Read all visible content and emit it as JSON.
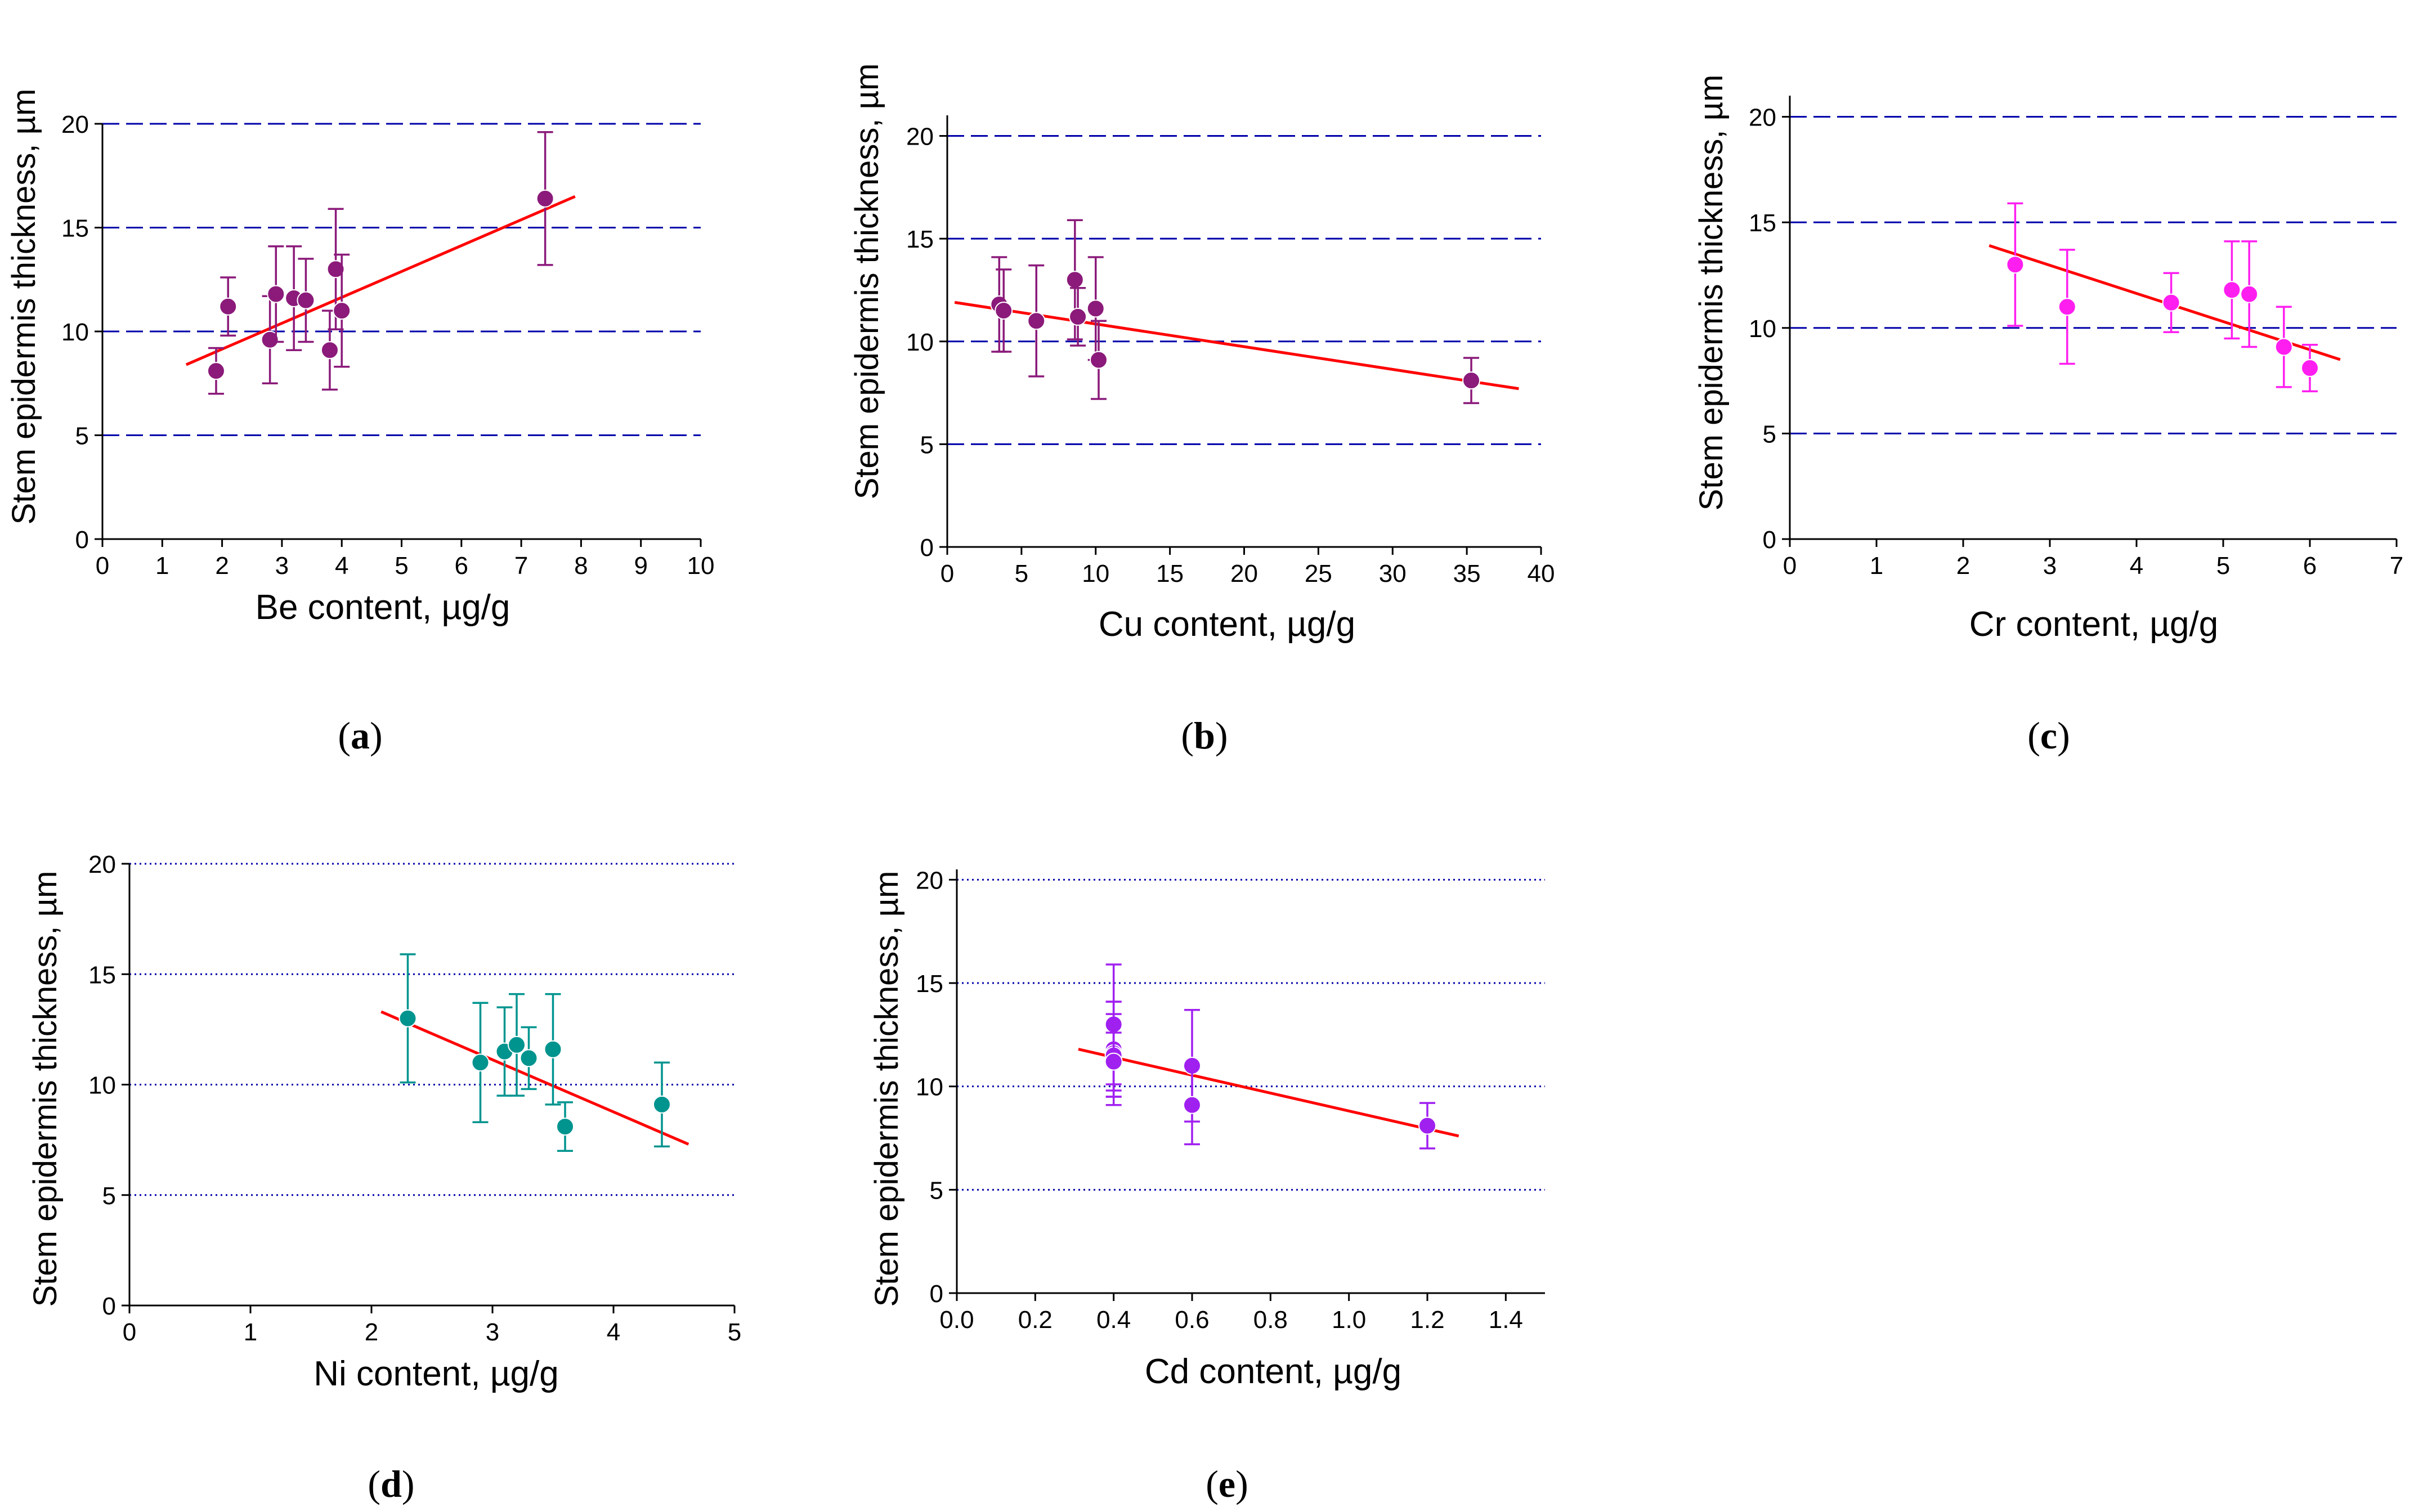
{
  "figure": {
    "panels": [
      "a",
      "b",
      "c",
      "d",
      "e"
    ]
  },
  "colors": {
    "axis": "#000000",
    "grid": "#0000aa",
    "fit_line": "#ff0000",
    "be_points": "#8b1a7a",
    "cu_points": "#8b1a7a",
    "cr_points": "#ff1ef0",
    "ni_points": "#00948f",
    "cd_points": "#a020f0"
  },
  "chart_data": [
    {
      "id": "a",
      "type": "scatter",
      "panel_label": "a",
      "xlabel": "Be content, µg/g",
      "ylabel": "Stem epidermis thickness, µm",
      "xlim": [
        0,
        10
      ],
      "ylim": [
        0,
        20
      ],
      "x_ticks": [
        0,
        1,
        2,
        3,
        4,
        5,
        6,
        7,
        8,
        9,
        10
      ],
      "x_tick_labels": [
        "0",
        "1",
        "2",
        "3",
        "4",
        "5",
        "6",
        "7",
        "8",
        "9",
        "10"
      ],
      "y_ticks": [
        0,
        5,
        10,
        15,
        20
      ],
      "y_tick_labels": [
        "0",
        "5",
        "10",
        "15",
        "20"
      ],
      "grid": "horizontal",
      "grid_style": "dashed",
      "marker_color": "#8b1a7a",
      "points": [
        {
          "x": 1.9,
          "y": 8.1,
          "err": 1.1
        },
        {
          "x": 2.1,
          "y": 11.2,
          "err": 1.4
        },
        {
          "x": 2.8,
          "y": 9.6,
          "err": 2.1
        },
        {
          "x": 2.9,
          "y": 11.8,
          "err": 2.3
        },
        {
          "x": 3.2,
          "y": 11.6,
          "err": 2.5
        },
        {
          "x": 3.4,
          "y": 11.5,
          "err": 2.0
        },
        {
          "x": 3.8,
          "y": 9.1,
          "err": 1.9
        },
        {
          "x": 3.9,
          "y": 13.0,
          "err": 2.9
        },
        {
          "x": 4.0,
          "y": 11.0,
          "err": 2.7
        },
        {
          "x": 7.4,
          "y": 16.4,
          "err": 3.2
        }
      ],
      "fit": {
        "x": [
          1.4,
          7.9
        ],
        "y": [
          8.4,
          16.5
        ]
      }
    },
    {
      "id": "b",
      "type": "scatter",
      "panel_label": "b",
      "xlabel": "Cu content, µg/g",
      "ylabel": "Stem epidermis thickness, µm",
      "xlim": [
        0,
        40
      ],
      "ylim": [
        0,
        21
      ],
      "x_ticks": [
        0,
        5,
        10,
        15,
        20,
        25,
        30,
        35,
        40
      ],
      "x_tick_labels": [
        "0",
        "5",
        "10",
        "15",
        "20",
        "25",
        "30",
        "35",
        "40"
      ],
      "y_ticks": [
        0,
        5,
        10,
        15,
        20
      ],
      "y_tick_labels": [
        "0",
        "5",
        "10",
        "15",
        "20"
      ],
      "grid": "horizontal",
      "grid_style": "dashed",
      "marker_color": "#8b1a7a",
      "points": [
        {
          "x": 3.5,
          "y": 11.8,
          "err": 2.3
        },
        {
          "x": 3.8,
          "y": 11.5,
          "err": 2.0
        },
        {
          "x": 6.0,
          "y": 11.0,
          "err": 2.7
        },
        {
          "x": 8.6,
          "y": 13.0,
          "err": 2.9
        },
        {
          "x": 8.8,
          "y": 11.2,
          "err": 1.4
        },
        {
          "x": 10.0,
          "y": 11.6,
          "err": 2.5
        },
        {
          "x": 10.2,
          "y": 9.1,
          "err": 1.9
        },
        {
          "x": 35.3,
          "y": 8.1,
          "err": 1.1
        }
      ],
      "fit": {
        "x": [
          0.5,
          38.5
        ],
        "y": [
          11.9,
          7.7
        ]
      }
    },
    {
      "id": "c",
      "type": "scatter",
      "panel_label": "c",
      "xlabel": "Cr content, µg/g",
      "ylabel": "Stem epidermis thickness, µm",
      "xlim": [
        0,
        7
      ],
      "ylim": [
        0,
        21
      ],
      "x_ticks": [
        0,
        1,
        2,
        3,
        4,
        5,
        6,
        7
      ],
      "x_tick_labels": [
        "0",
        "1",
        "2",
        "3",
        "4",
        "5",
        "6",
        "7"
      ],
      "y_ticks": [
        0,
        5,
        10,
        15,
        20
      ],
      "y_tick_labels": [
        "0",
        "5",
        "10",
        "15",
        "20"
      ],
      "grid": "horizontal",
      "grid_style": "dashed",
      "marker_color": "#ff1ef0",
      "points": [
        {
          "x": 2.6,
          "y": 13.0,
          "err": 2.9
        },
        {
          "x": 3.2,
          "y": 11.0,
          "err": 2.7
        },
        {
          "x": 4.4,
          "y": 11.2,
          "err": 1.4
        },
        {
          "x": 5.1,
          "y": 11.8,
          "err": 2.3
        },
        {
          "x": 5.3,
          "y": 11.6,
          "err": 2.5
        },
        {
          "x": 5.7,
          "y": 9.1,
          "err": 1.9
        },
        {
          "x": 6.0,
          "y": 8.1,
          "err": 1.1
        }
      ],
      "fit": {
        "x": [
          2.3,
          6.35
        ],
        "y": [
          13.9,
          8.5
        ]
      }
    },
    {
      "id": "d",
      "type": "scatter",
      "panel_label": "d",
      "xlabel": "Ni content, µg/g",
      "ylabel": "Stem epidermis thickness, µm",
      "xlim": [
        0,
        5
      ],
      "ylim": [
        0,
        20
      ],
      "x_ticks": [
        0,
        1,
        2,
        3,
        4,
        5
      ],
      "x_tick_labels": [
        "0",
        "1",
        "2",
        "3",
        "4",
        "5"
      ],
      "y_ticks": [
        0,
        5,
        10,
        15,
        20
      ],
      "y_tick_labels": [
        "0",
        "5",
        "10",
        "15",
        "20"
      ],
      "grid": "horizontal",
      "grid_style": "dotted",
      "marker_color": "#00948f",
      "points": [
        {
          "x": 2.3,
          "y": 13.0,
          "err": 2.9
        },
        {
          "x": 2.9,
          "y": 11.0,
          "err": 2.7
        },
        {
          "x": 3.1,
          "y": 11.5,
          "err": 2.0
        },
        {
          "x": 3.2,
          "y": 11.8,
          "err": 2.3
        },
        {
          "x": 3.3,
          "y": 11.2,
          "err": 1.4
        },
        {
          "x": 3.5,
          "y": 11.6,
          "err": 2.5
        },
        {
          "x": 3.6,
          "y": 8.1,
          "err": 1.1
        },
        {
          "x": 4.4,
          "y": 9.1,
          "err": 1.9
        }
      ],
      "fit": {
        "x": [
          2.08,
          4.62
        ],
        "y": [
          13.3,
          7.3
        ]
      }
    },
    {
      "id": "e",
      "type": "scatter",
      "panel_label": "e",
      "xlabel": "Cd content, µg/g",
      "ylabel": "Stem epidermis thickness, µm",
      "xlim": [
        0,
        1.5
      ],
      "ylim": [
        0,
        20.5
      ],
      "x_ticks": [
        0,
        0.2,
        0.4,
        0.6,
        0.8,
        1.0,
        1.2,
        1.4
      ],
      "x_tick_labels": [
        "0.0",
        "0.2",
        "0.4",
        "0.6",
        "0.8",
        "1.0",
        "1.2",
        "1.4"
      ],
      "y_ticks": [
        0,
        5,
        10,
        15,
        20
      ],
      "y_tick_labels": [
        "0",
        "5",
        "10",
        "15",
        "20"
      ],
      "grid": "horizontal",
      "grid_style": "dotted",
      "marker_color": "#a020f0",
      "points": [
        {
          "x": 0.4,
          "y": 13.0,
          "err": 2.9
        },
        {
          "x": 0.4,
          "y": 11.8,
          "err": 2.3
        },
        {
          "x": 0.4,
          "y": 11.6,
          "err": 2.5
        },
        {
          "x": 0.4,
          "y": 11.5,
          "err": 2.0
        },
        {
          "x": 0.4,
          "y": 11.2,
          "err": 1.4
        },
        {
          "x": 0.6,
          "y": 11.0,
          "err": 2.7
        },
        {
          "x": 0.6,
          "y": 9.1,
          "err": 1.9
        },
        {
          "x": 1.2,
          "y": 8.1,
          "err": 1.1
        }
      ],
      "fit": {
        "x": [
          0.31,
          1.28
        ],
        "y": [
          11.8,
          7.6
        ]
      }
    }
  ]
}
